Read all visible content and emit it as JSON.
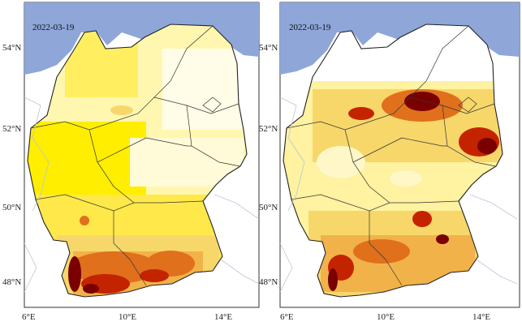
{
  "panels": [
    {
      "date": "2022-03-19",
      "lat_labels": [
        "54°N",
        "52°N",
        "50°N",
        "48°N"
      ],
      "lon_labels": [
        "6°E",
        "10°E",
        "14°E"
      ]
    },
    {
      "date": "2022-03-19",
      "lat_labels": [
        "54°N",
        "52°N",
        "50°N",
        "48°N"
      ],
      "lon_labels": [
        "6°E",
        "10°E",
        "14°E"
      ]
    }
  ],
  "colors": {
    "sea": "#8ea6d8",
    "land": "#ffffff",
    "border": "#222222",
    "river": "#b9c7d6",
    "level_1": "#ffee00",
    "level_2": "#f7d76a",
    "level_3": "#f2b24a",
    "level_4": "#e0701c",
    "level_5": "#c42300",
    "level_6": "#7a0000"
  }
}
